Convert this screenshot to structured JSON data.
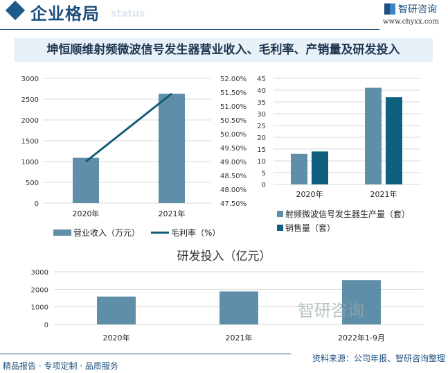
{
  "header": {
    "section_title": "企业格局",
    "ghost_text": "status",
    "logo": "智研咨询",
    "url": "www.chyxx.com"
  },
  "banner_title": "坤恒顺维射频微波信号发生器营业收入、毛利率、产销量及研发投入",
  "colors": {
    "bar_light": "#5f8fa8",
    "bar_dark": "#0f5f80",
    "line": "#0f5c78",
    "brand": "#1d4f7c"
  },
  "chart_data": [
    {
      "type": "bar+line",
      "categories": [
        "2020年",
        "2021年"
      ],
      "series": [
        {
          "name": "营业收入（万元）",
          "type": "bar",
          "axis": "left",
          "values": [
            1090,
            2630
          ]
        },
        {
          "name": "毛利率（%）",
          "type": "line",
          "axis": "right",
          "values": [
            49.0,
            51.45
          ]
        }
      ],
      "ylim_left": [
        0,
        3000
      ],
      "yticks_left": [
        "0",
        "500",
        "1000",
        "1500",
        "2000",
        "2500",
        "3000"
      ],
      "ylim_right": [
        47.5,
        52.0
      ],
      "yticks_right": [
        "47.50%",
        "48.00%",
        "48.50%",
        "49.00%",
        "49.50%",
        "50.00%",
        "50.50%",
        "51.00%",
        "51.50%",
        "52.00%"
      ],
      "grid": true,
      "legend": "bottom"
    },
    {
      "type": "bar",
      "categories": [
        "2020年",
        "2021年"
      ],
      "series": [
        {
          "name": "射频微波信号发生器生产量（套）",
          "values": [
            13,
            41
          ]
        },
        {
          "name": "销售量（套）",
          "values": [
            14,
            37
          ]
        }
      ],
      "ylim": [
        0,
        45
      ],
      "yticks": [
        "0",
        "5",
        "10",
        "15",
        "20",
        "25",
        "30",
        "35",
        "40",
        "45"
      ],
      "grid": true,
      "legend": "bottom"
    },
    {
      "type": "bar",
      "title": "研发投入（亿元）",
      "categories": [
        "2020年",
        "2021年",
        "2022年1-9月"
      ],
      "values": [
        1590,
        1880,
        2520
      ],
      "ylim": [
        0,
        3000
      ],
      "yticks": [
        "0",
        "1000",
        "2000",
        "3000"
      ],
      "grid": true
    }
  ],
  "footer": {
    "tagline": "精品报告 · 专项定制 · 品质服务",
    "source": "资料来源：公司年报、智研咨询整理",
    "watermark": "智研咨询"
  }
}
